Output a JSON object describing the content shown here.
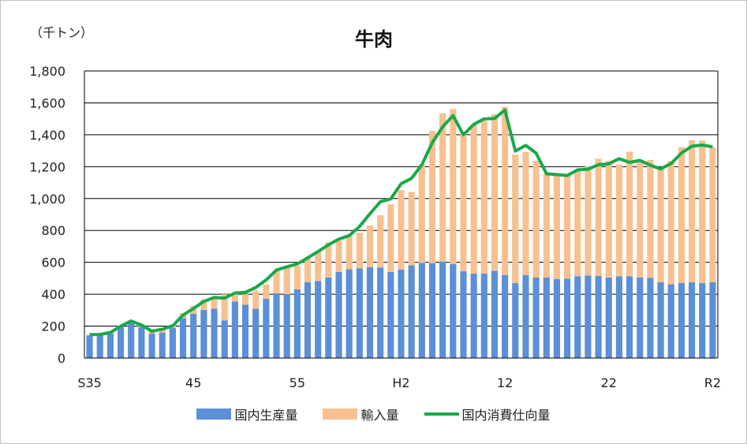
{
  "colors": {
    "production": "#5b8fd8",
    "imports": "#f8c08f",
    "consumption": "#1aa84a",
    "gridline": "#000000"
  },
  "chart_data": {
    "type": "bar",
    "stacked": true,
    "title": "牛肉",
    "unit_label": "（千トン）",
    "ylim": [
      0,
      1800
    ],
    "yticks": [
      "0",
      "200",
      "400",
      "600",
      "800",
      "1,000",
      "1,200",
      "1,400",
      "1,600",
      "1,800"
    ],
    "ytick_values": [
      0,
      200,
      400,
      600,
      800,
      1000,
      1200,
      1400,
      1600,
      1800
    ],
    "xtick_labels": [
      {
        "index": 0,
        "label": "S35"
      },
      {
        "index": 10,
        "label": "45"
      },
      {
        "index": 20,
        "label": "55"
      },
      {
        "index": 30,
        "label": "H2"
      },
      {
        "index": 40,
        "label": "12"
      },
      {
        "index": 50,
        "label": "22"
      },
      {
        "index": 60,
        "label": "R2"
      }
    ],
    "grid": true,
    "legend_position": "bottom",
    "series": [
      {
        "name": "国内生産量",
        "kind": "bar",
        "values": [
          141,
          141,
          153,
          198,
          229,
          196,
          153,
          160,
          188,
          250,
          278,
          302,
          310,
          236,
          354,
          335,
          309,
          371,
          406,
          400,
          431,
          476,
          483,
          505,
          539,
          556,
          563,
          569,
          568,
          539,
          555,
          581,
          596,
          595,
          605,
          590,
          545,
          529,
          529,
          547,
          521,
          470,
          520,
          505,
          505,
          495,
          497,
          513,
          518,
          514,
          505,
          512,
          513,
          505,
          502,
          475,
          463,
          471,
          475,
          471,
          476
        ]
      },
      {
        "name": "輸入量",
        "kind": "bar",
        "values": [
          6,
          6,
          6,
          6,
          8,
          10,
          13,
          20,
          22,
          30,
          49,
          66,
          72,
          164,
          51,
          65,
          114,
          90,
          143,
          168,
          147,
          154,
          187,
          219,
          198,
          209,
          223,
          262,
          327,
          425,
          498,
          462,
          618,
          829,
          929,
          971,
          874,
          935,
          958,
          982,
          1054,
          806,
          772,
          732,
          650,
          658,
          647,
          664,
          686,
          736,
          732,
          702,
          781,
          738,
          740,
          721,
          773,
          851,
          890,
          893,
          846
        ]
      },
      {
        "name": "国内消費仕向量",
        "kind": "line",
        "values": [
          147,
          148,
          160,
          200,
          232,
          207,
          168,
          181,
          202,
          270,
          310,
          355,
          380,
          376,
          408,
          412,
          442,
          490,
          552,
          572,
          590,
          628,
          668,
          710,
          745,
          768,
          825,
          905,
          980,
          998,
          1093,
          1127,
          1212,
          1350,
          1450,
          1520,
          1400,
          1465,
          1500,
          1502,
          1555,
          1298,
          1333,
          1285,
          1155,
          1150,
          1145,
          1180,
          1184,
          1212,
          1218,
          1250,
          1227,
          1239,
          1209,
          1186,
          1220,
          1285,
          1328,
          1335,
          1325
        ]
      }
    ]
  }
}
